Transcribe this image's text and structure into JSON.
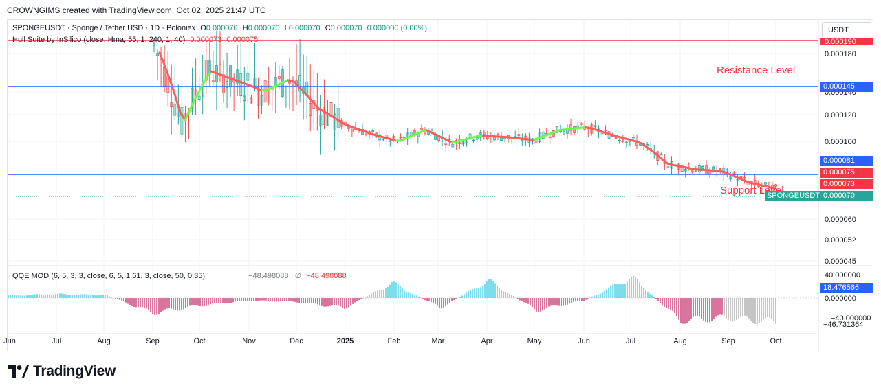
{
  "header": {
    "created": "CROWNGIMS created with TradingView.com, Oct 02, 2025 21:47 UTC"
  },
  "legend": {
    "symbol": "SPONGEUSDT · Sponge / Tether USD · 1D · Poloniex",
    "o_label": "O",
    "o": "0.000070",
    "h_label": "H",
    "h": "0.000070",
    "l_label": "L",
    "l": "0.000070",
    "c_label": "C",
    "c": "0.000070",
    "change": "0.000000 (0.00%)",
    "hull_label": "Hull Suite by InSilico (close, Hma, 55, 1, 240, 1, 40)",
    "hull_v1": "0.000073",
    "hull_v2": "0.000075",
    "qqe_label": "QQE MOD (6, 5, 3, 3, close, 6, 5, 1.61, 3, close, 50, 0.35)",
    "qqe_v1": "−48.498088",
    "qqe_sym": "∅",
    "qqe_v2": "−48.498088"
  },
  "currency": "USDT",
  "annotations": {
    "resistance": "Resistance Level",
    "support": "Support Level"
  },
  "price_axis": {
    "ticks": [
      "0.000180",
      "0.000140",
      "0.000120",
      "0.000100",
      "0.000060",
      "0.000052",
      "0.000045"
    ],
    "top_partial": "0.000190"
  },
  "price_tags": {
    "resistance": "0.000145",
    "line81": "0.000081",
    "hull_a": "0.000075",
    "hull_b": "0.000073",
    "last_symbol": "SPONGEUSDT",
    "last": "0.000070"
  },
  "qqe_axis": {
    "ticks": [
      "40.000000",
      "0.000000"
    ],
    "partial": "−40.000000",
    "tag_top": "18.476566",
    "tag_bottom": "−46.731364"
  },
  "time_axis": [
    "Jun",
    "Jul",
    "Aug",
    "Sep",
    "Oct",
    "Nov",
    "Dec",
    "2025",
    "Feb",
    "Mar",
    "Apr",
    "May",
    "Jun",
    "Jul",
    "Aug",
    "Sep",
    "Oct"
  ],
  "brand": "TradingView",
  "colors": {
    "resistance_line": "#2962ff",
    "support_line": "#2962ff",
    "top_line": "#f23645",
    "hull_up": "#66ff44",
    "hull_down": "#ff5d5d",
    "qqe_up": "#26c6da",
    "qqe_down": "#c2185b",
    "qqe_neutral": "#9e9e9e"
  },
  "chart_data": [
    {
      "type": "line",
      "title": "SPONGEUSDT · Sponge / Tether USD · 1D · Poloniex",
      "x": [
        "Sep",
        "Sep",
        "Oct",
        "Oct",
        "Nov",
        "Nov",
        "Dec",
        "Dec",
        "2025",
        "Feb",
        "Feb",
        "Mar",
        "Apr",
        "Apr",
        "May",
        "Jun",
        "Jun",
        "Jul",
        "Jul",
        "Aug",
        "Aug",
        "Sep",
        "Sep",
        "Oct"
      ],
      "series": [
        {
          "values": [
            0.00019,
            0.000112,
            0.00016,
            0.00015,
            0.00014,
            0.000152,
            0.000125,
            0.000112,
            0.000105,
            0.0001,
            0.000108,
            9.9e-05,
            0.000104,
            0.000103,
            0.000101,
            0.000108,
            0.00011,
            0.000104,
            9.9e-05,
            8.6e-05,
            8.3e-05,
            8.2e-05,
            7.6e-05,
            7.3e-05
          ]
        }
      ],
      "reference_lines": [
        {
          "label": "Resistance Level",
          "value": 0.000145
        },
        {
          "label": "Support Level",
          "value": 7.8e-05
        }
      ],
      "ylim": [
        4.5e-05,
        0.000195
      ],
      "grid": true
    },
    {
      "type": "bar",
      "title": "QQE MOD (6, 5, 3, 3, close, 6, 5, 1.61, 3, close, 50, 0.35)",
      "x": [
        "Jun",
        "Jul",
        "Aug",
        "Sep",
        "Oct",
        "Nov",
        "Dec",
        "2025",
        "Feb",
        "Mar",
        "Apr",
        "May",
        "Jun",
        "Jul",
        "Aug",
        "Sep",
        "Oct"
      ],
      "values": [
        5,
        8,
        6,
        -30,
        -15,
        -5,
        -8,
        -20,
        30,
        -20,
        35,
        -25,
        -5,
        42,
        -45,
        -40,
        -48.5
      ],
      "ylim": [
        -55,
        45
      ]
    }
  ]
}
